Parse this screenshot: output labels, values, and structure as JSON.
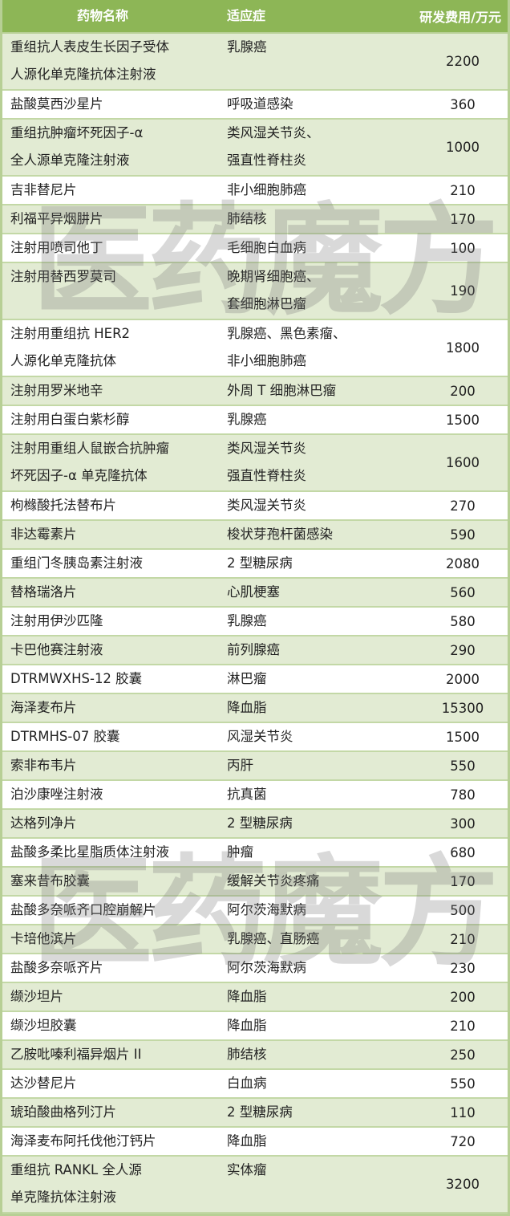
{
  "colors": {
    "header_bg": "#8db656",
    "row_alt_bg": "#e2ebd3",
    "row_bg": "#ffffff",
    "border": "#b7cf95"
  },
  "watermark": "医药魔方",
  "table": {
    "headers": [
      "药物名称",
      "适应症",
      "研发费用/万元"
    ],
    "rows": [
      {
        "name": "重组抗人表皮生长因子受体\n人源化单克隆抗体注射液",
        "indication": "乳腺癌",
        "cost": "2200"
      },
      {
        "name": "盐酸莫西沙星片",
        "indication": "呼吸道感染",
        "cost": "360"
      },
      {
        "name": "重组抗肿瘤坏死因子-α\n全人源单克隆注射液",
        "indication": "类风湿关节炎、\n强直性脊柱炎",
        "cost": "1000"
      },
      {
        "name": "吉非替尼片",
        "indication": "非小细胞肺癌",
        "cost": "210"
      },
      {
        "name": "利福平异烟肼片",
        "indication": "肺结核",
        "cost": "170"
      },
      {
        "name": "注射用喷司他丁",
        "indication": "毛细胞白血病",
        "cost": "100"
      },
      {
        "name": "注射用替西罗莫司",
        "indication": "晚期肾细胞癌、\n套细胞淋巴瘤",
        "cost": "190"
      },
      {
        "name": "注射用重组抗 HER2\n人源化单克隆抗体",
        "indication": "乳腺癌、黑色素瘤、\n非小细胞肺癌",
        "cost": "1800"
      },
      {
        "name": "注射用罗米地辛",
        "indication": "外周 T 细胞淋巴瘤",
        "cost": "200"
      },
      {
        "name": "注射用白蛋白紫杉醇",
        "indication": "乳腺癌",
        "cost": "1500"
      },
      {
        "name": "注射用重组人鼠嵌合抗肿瘤\n坏死因子-α 单克隆抗体",
        "indication": "类风湿关节炎\n强直性脊柱炎",
        "cost": "1600"
      },
      {
        "name": "枸橼酸托法替布片",
        "indication": "类风湿关节炎",
        "cost": "270"
      },
      {
        "name": "非达霉素片",
        "indication": "梭状芽孢杆菌感染",
        "cost": "590"
      },
      {
        "name": "重组门冬胰岛素注射液",
        "indication": "2 型糖尿病",
        "cost": "2080"
      },
      {
        "name": "替格瑞洛片",
        "indication": "心肌梗塞",
        "cost": "560"
      },
      {
        "name": "注射用伊沙匹隆",
        "indication": "乳腺癌",
        "cost": "580"
      },
      {
        "name": "卡巴他赛注射液",
        "indication": "前列腺癌",
        "cost": "290"
      },
      {
        "name": "DTRMWXHS-12 胶囊",
        "indication": "淋巴瘤",
        "cost": "2000"
      },
      {
        "name": "海泽麦布片",
        "indication": "降血脂",
        "cost": "15300"
      },
      {
        "name": "DTRMHS-07 胶囊",
        "indication": "风湿关节炎",
        "cost": "1500"
      },
      {
        "name": "索非布韦片",
        "indication": "丙肝",
        "cost": "550"
      },
      {
        "name": "泊沙康唑注射液",
        "indication": "抗真菌",
        "cost": "780"
      },
      {
        "name": "达格列净片",
        "indication": "2 型糖尿病",
        "cost": "300"
      },
      {
        "name": "盐酸多柔比星脂质体注射液",
        "indication": "肿瘤",
        "cost": "680"
      },
      {
        "name": "塞来昔布胶囊",
        "indication": "缓解关节炎疼痛",
        "cost": "170"
      },
      {
        "name": "盐酸多奈哌齐口腔崩解片",
        "indication": "阿尔茨海默病",
        "cost": "500"
      },
      {
        "name": "卡培他滨片",
        "indication": "乳腺癌、直肠癌",
        "cost": "210"
      },
      {
        "name": "盐酸多奈哌齐片",
        "indication": "阿尔茨海默病",
        "cost": "230"
      },
      {
        "name": "缬沙坦片",
        "indication": "降血脂",
        "cost": "200"
      },
      {
        "name": "缬沙坦胶囊",
        "indication": "降血脂",
        "cost": "210"
      },
      {
        "name": "乙胺吡嗪利福异烟片 II",
        "indication": "肺结核",
        "cost": "250"
      },
      {
        "name": "达沙替尼片",
        "indication": "白血病",
        "cost": "550"
      },
      {
        "name": "琥珀酸曲格列汀片",
        "indication": "2 型糖尿病",
        "cost": "110"
      },
      {
        "name": "海泽麦布阿托伐他汀钙片",
        "indication": "降血脂",
        "cost": "720"
      },
      {
        "name": "重组抗 RANKL 全人源\n单克隆抗体注射液",
        "indication": "实体瘤",
        "cost": "3200"
      }
    ]
  }
}
